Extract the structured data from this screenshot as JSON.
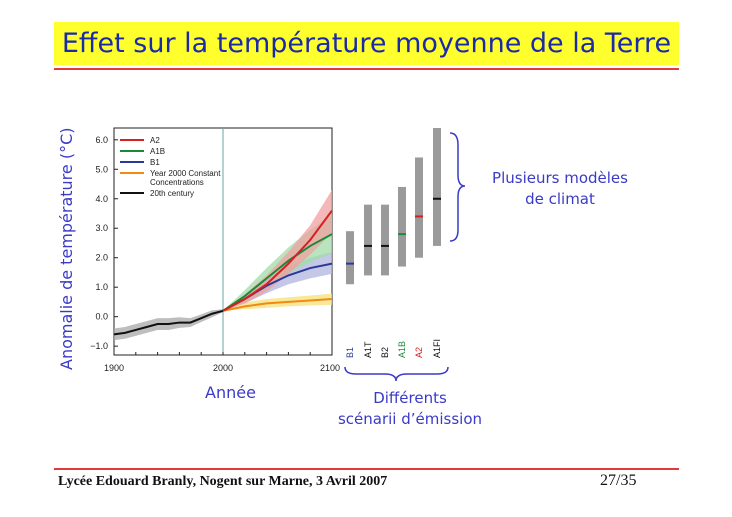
{
  "slide": {
    "title": "Effet sur la température moyenne de la Terre",
    "y_axis_label": "Anomalie de température (°C)",
    "x_axis_label": "Année",
    "models_label_line1": "Plusieurs modèles",
    "models_label_line2": "de climat",
    "scenarios_label_line1": "Différents",
    "scenarios_label_line2": "scénarii d’émission",
    "footer_left": "Lycée Edouard Branly, Nogent sur Marne, 3 Avril 2007",
    "footer_right": "27/35"
  },
  "colors": {
    "title_bg": "#ffff2e",
    "title_text": "#1a2aa8",
    "rule": "#e23a3a",
    "annotation_text": "#3a3ac8"
  },
  "chart_data": [
    {
      "type": "line",
      "x_ticks": [
        "1900",
        "2000",
        "2100"
      ],
      "y_ticks": [
        "−1.0",
        "0.0",
        "1.0",
        "2.0",
        "3.0",
        "4.0",
        "5.0",
        "6.0"
      ],
      "xlim": [
        1900,
        2100
      ],
      "ylim": [
        -1.3,
        6.4
      ],
      "legend_position": "top-left",
      "series": [
        {
          "name": "A2",
          "color": "#d42020",
          "band_color": "#f0a0a0",
          "x": [
            2000,
            2020,
            2040,
            2060,
            2080,
            2100
          ],
          "y": [
            0.2,
            0.6,
            1.1,
            1.8,
            2.6,
            3.6
          ],
          "low": [
            0.2,
            0.45,
            0.85,
            1.45,
            2.1,
            2.85
          ],
          "high": [
            0.2,
            0.75,
            1.4,
            2.2,
            3.1,
            4.3
          ]
        },
        {
          "name": "A1B",
          "color": "#1a8a3a",
          "band_color": "#a0dca8",
          "x": [
            2000,
            2020,
            2040,
            2060,
            2080,
            2100
          ],
          "y": [
            0.2,
            0.7,
            1.3,
            1.9,
            2.4,
            2.8
          ],
          "low": [
            0.2,
            0.5,
            0.95,
            1.45,
            1.85,
            2.15
          ],
          "high": [
            0.2,
            0.9,
            1.65,
            2.35,
            2.95,
            3.45
          ]
        },
        {
          "name": "B1",
          "color": "#2a3a9a",
          "band_color": "#b0b4de",
          "x": [
            2000,
            2020,
            2040,
            2060,
            2080,
            2100
          ],
          "y": [
            0.2,
            0.6,
            1.05,
            1.4,
            1.65,
            1.8
          ],
          "low": [
            0.2,
            0.45,
            0.8,
            1.1,
            1.3,
            1.45
          ],
          "high": [
            0.2,
            0.75,
            1.3,
            1.7,
            2.0,
            2.2
          ]
        },
        {
          "name": "Year 2000 Constant Concentrations",
          "color": "#f08a10",
          "band_color": "#f6e07a",
          "x": [
            2000,
            2020,
            2040,
            2060,
            2080,
            2100
          ],
          "y": [
            0.2,
            0.35,
            0.45,
            0.5,
            0.55,
            0.6
          ],
          "low": [
            0.2,
            0.25,
            0.3,
            0.35,
            0.38,
            0.4
          ],
          "high": [
            0.2,
            0.48,
            0.6,
            0.66,
            0.72,
            0.78
          ]
        },
        {
          "name": "20th century",
          "color": "#111111",
          "band_color": "#a8a8a8",
          "x": [
            1900,
            1910,
            1920,
            1930,
            1940,
            1950,
            1960,
            1970,
            1980,
            1990,
            2000
          ],
          "y": [
            -0.6,
            -0.55,
            -0.45,
            -0.35,
            -0.25,
            -0.25,
            -0.2,
            -0.2,
            -0.05,
            0.1,
            0.2
          ],
          "low": [
            -0.8,
            -0.75,
            -0.65,
            -0.55,
            -0.45,
            -0.45,
            -0.38,
            -0.35,
            -0.18,
            -0.02,
            0.15
          ],
          "high": [
            -0.4,
            -0.35,
            -0.25,
            -0.15,
            -0.05,
            -0.05,
            -0.02,
            -0.05,
            0.08,
            0.22,
            0.25
          ]
        }
      ]
    },
    {
      "type": "bar",
      "categories": [
        "B1",
        "A1T",
        "B2",
        "A1B",
        "A2",
        "A1FI"
      ],
      "category_colors": [
        "#2a3a9a",
        "#111111",
        "#111111",
        "#1a8a3a",
        "#d42020",
        "#111111"
      ],
      "ranges": [
        [
          1.1,
          2.9
        ],
        [
          1.4,
          3.8
        ],
        [
          1.4,
          3.8
        ],
        [
          1.7,
          4.4
        ],
        [
          2.0,
          5.4
        ],
        [
          2.4,
          6.4
        ]
      ],
      "best_estimates": [
        1.8,
        2.4,
        2.4,
        2.8,
        3.4,
        4.0
      ],
      "bar_color": "#9a9a9a"
    }
  ]
}
